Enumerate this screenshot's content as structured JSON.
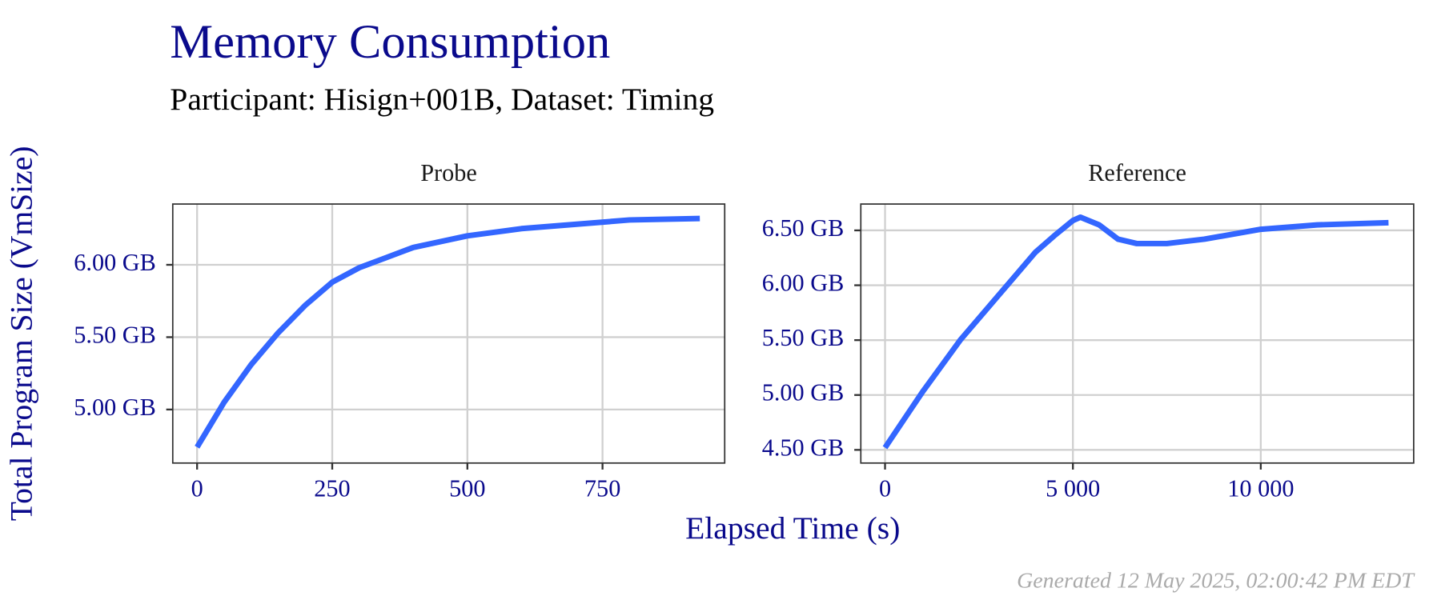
{
  "title": "Memory Consumption",
  "subtitle": "Participant: Hisign+001B, Dataset: Timing",
  "y_label": "Total Program Size (VmSize)",
  "x_label": "Elapsed Time (s)",
  "caption": "Generated 12 May 2025, 02:00:42 PM EDT",
  "chart_data": [
    {
      "type": "line",
      "title": "Probe",
      "color": "#3366ff",
      "grid": true,
      "x": [
        0,
        50,
        100,
        150,
        200,
        250,
        300,
        350,
        400,
        500,
        600,
        700,
        800,
        930
      ],
      "values": [
        4.74,
        5.05,
        5.31,
        5.53,
        5.72,
        5.88,
        5.98,
        6.05,
        6.12,
        6.2,
        6.25,
        6.28,
        6.31,
        6.32
      ],
      "xlim": [
        -45,
        976
      ],
      "ylim": [
        4.63,
        6.42
      ],
      "xticks": [
        0,
        250,
        500,
        750
      ],
      "yticks": [
        {
          "value": 5,
          "label": "5.00 GB"
        },
        {
          "value": 5.5,
          "label": "5.50 GB"
        },
        {
          "value": 6,
          "label": "6.00 GB"
        }
      ]
    },
    {
      "type": "line",
      "title": "Reference",
      "color": "#3366ff",
      "grid": true,
      "x": [
        0,
        1000,
        2000,
        3000,
        4000,
        4500,
        5000,
        5200,
        5700,
        6200,
        6700,
        7500,
        8500,
        10000,
        11500,
        13400
      ],
      "values": [
        4.52,
        5.03,
        5.5,
        5.9,
        6.3,
        6.45,
        6.59,
        6.62,
        6.55,
        6.42,
        6.38,
        6.38,
        6.42,
        6.51,
        6.55,
        6.57
      ],
      "xlim": [
        -645,
        14070
      ],
      "ylim": [
        4.38,
        6.74
      ],
      "xticks": [
        0,
        {
          "value": 5000,
          "label": "5 000"
        },
        {
          "value": 10000,
          "label": "10 000"
        }
      ],
      "yticks": [
        {
          "value": 4.5,
          "label": "4.50 GB"
        },
        {
          "value": 5,
          "label": "5.00 GB"
        },
        {
          "value": 5.5,
          "label": "5.50 GB"
        },
        {
          "value": 6,
          "label": "6.00 GB"
        },
        {
          "value": 6.5,
          "label": "6.50 GB"
        }
      ]
    }
  ]
}
